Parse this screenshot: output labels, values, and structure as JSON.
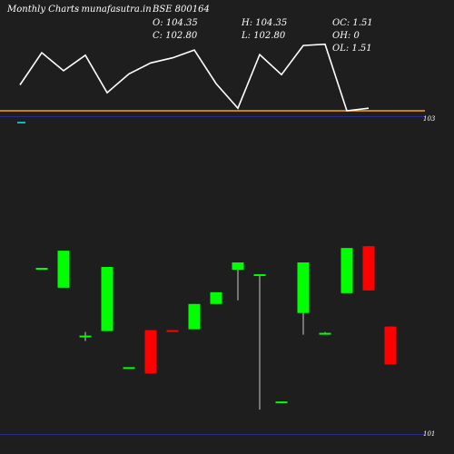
{
  "header": {
    "brand": "Monthly Charts",
    "source": "- munafasutra.in",
    "symbol": "BSE 800164",
    "open": "O: 104.35",
    "high": "H: 104.35",
    "close": "C: 102.80",
    "low": "L: 102.80",
    "oc": "OC: 1.51",
    "oh": "OH: 0",
    "ol": "OL: 1.51"
  },
  "chart_data": {
    "type": "candlestick",
    "y_labels": [
      "103",
      "101"
    ],
    "ylim": [
      101,
      104.5
    ],
    "colors": {
      "up": "#00ff00",
      "down": "#ff0000",
      "background": "#1e1e1e",
      "indicator": "#ffffff",
      "baseline": "#ffa500",
      "gridline": "#2a2a8c",
      "volume": "#00c0c0"
    },
    "candles": [
      {
        "o": 102.76,
        "h": 102.76,
        "l": 102.76,
        "c": 102.76
      },
      {
        "o": 102.54,
        "h": 102.95,
        "l": 102.54,
        "c": 102.95
      },
      {
        "o": 102.01,
        "h": 102.05,
        "l": 101.95,
        "c": 102.01
      },
      {
        "o": 102.06,
        "h": 102.77,
        "l": 102.06,
        "c": 102.77
      },
      {
        "o": 101.66,
        "h": 101.66,
        "l": 101.66,
        "c": 101.66
      },
      {
        "o": 102.07,
        "h": 102.07,
        "l": 101.59,
        "c": 101.59
      },
      {
        "o": 102.07,
        "h": 102.07,
        "l": 102.06,
        "c": 102.06
      },
      {
        "o": 102.08,
        "h": 102.36,
        "l": 102.08,
        "c": 102.36
      },
      {
        "o": 102.36,
        "h": 102.49,
        "l": 102.36,
        "c": 102.49
      },
      {
        "o": 102.74,
        "h": 102.82,
        "l": 102.4,
        "c": 102.82
      },
      {
        "o": 102.69,
        "h": 102.69,
        "l": 101.19,
        "c": 102.69
      },
      {
        "o": 101.28,
        "h": 101.28,
        "l": 101.27,
        "c": 101.28
      },
      {
        "o": 102.26,
        "h": 102.82,
        "l": 102.02,
        "c": 102.82
      },
      {
        "o": 102.04,
        "h": 102.05,
        "l": 102.03,
        "c": 102.04
      },
      {
        "o": 102.48,
        "h": 102.98,
        "l": 102.48,
        "c": 102.98
      },
      {
        "o": 103.0,
        "h": 103.0,
        "l": 102.51,
        "c": 102.51
      },
      {
        "o": 102.11,
        "h": 102.11,
        "l": 101.69,
        "c": 101.69
      }
    ],
    "indicator": [
      40,
      90,
      62,
      86,
      28,
      57,
      74,
      82,
      94,
      42,
      4,
      87,
      56,
      101,
      103,
      0,
      4
    ]
  }
}
